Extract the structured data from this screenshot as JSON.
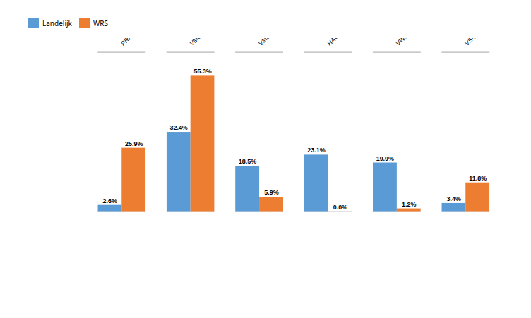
{
  "chart_data": {
    "type": "bar",
    "categories": [
      "PRAKTIJKONDERWIJS",
      "VMBO B/K/G (INCL.LWOO)",
      "VMBO T/MAVO (INCL.LWOO)",
      "HAVO",
      "VWO",
      "VSO"
    ],
    "series": [
      {
        "name": "Landelijk",
        "color": "#5B9BD5",
        "values": [
          2.6,
          32.4,
          18.5,
          23.1,
          19.9,
          3.4
        ],
        "value_labels": [
          "2.6%",
          "32.4%",
          "18.5%",
          "23.1%",
          "19.9%",
          "3.4%"
        ]
      },
      {
        "name": "WRS",
        "color": "#ED7D31",
        "values": [
          25.9,
          55.3,
          5.9,
          0.0,
          1.2,
          11.8
        ],
        "value_labels": [
          "25.9%",
          "55.3%",
          "5.9%",
          "0.0%",
          "1.2%",
          "11.8%"
        ]
      }
    ],
    "ylim": [
      0,
      65
    ],
    "data_labels": true,
    "tick_labels": "x",
    "legend": "top"
  }
}
